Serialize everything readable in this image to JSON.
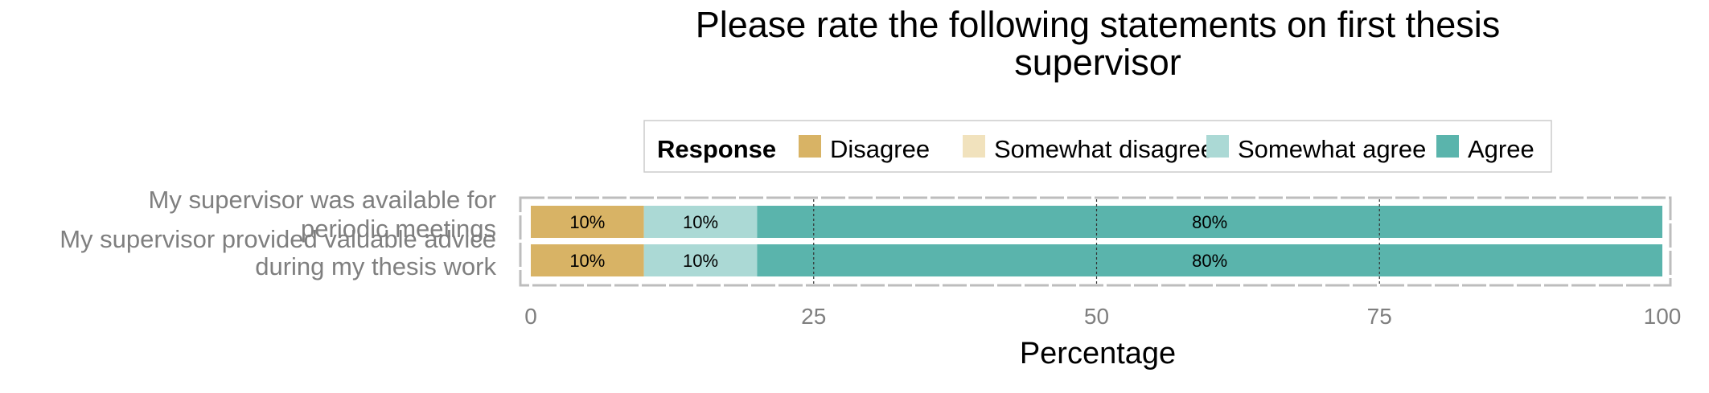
{
  "chart_data": {
    "type": "bar",
    "orientation": "horizontal",
    "stacked": true,
    "title_lines": [
      "Please rate the following statements on first thesis",
      "supervisor"
    ],
    "xlabel": "Percentage",
    "ylabel": "",
    "xlim": [
      0,
      100
    ],
    "x_ticks": [
      0,
      25,
      50,
      75,
      100
    ],
    "grid": true,
    "legend": {
      "title": "Response",
      "position": "top",
      "entries": [
        "Disagree",
        "Somewhat disagree",
        "Somewhat agree",
        "Agree"
      ]
    },
    "categories": [
      {
        "label_lines": [
          "My supervisor was available for",
          "periodic meetings"
        ]
      },
      {
        "label_lines": [
          "My supervisor provided valuable advice",
          "during my thesis work"
        ]
      }
    ],
    "series": [
      {
        "name": "Disagree",
        "color": "#d8b365",
        "values": [
          10,
          10
        ],
        "labels": [
          "10%",
          "10%"
        ]
      },
      {
        "name": "Somewhat disagree",
        "color": "#f1e2bd",
        "values": [
          0,
          0
        ],
        "labels": [
          "",
          ""
        ]
      },
      {
        "name": "Somewhat agree",
        "color": "#abd9d5",
        "values": [
          10,
          10
        ],
        "labels": [
          "10%",
          "10%"
        ]
      },
      {
        "name": "Agree",
        "color": "#5ab4ac",
        "values": [
          80,
          80
        ],
        "labels": [
          "80%",
          "80%"
        ]
      }
    ]
  }
}
